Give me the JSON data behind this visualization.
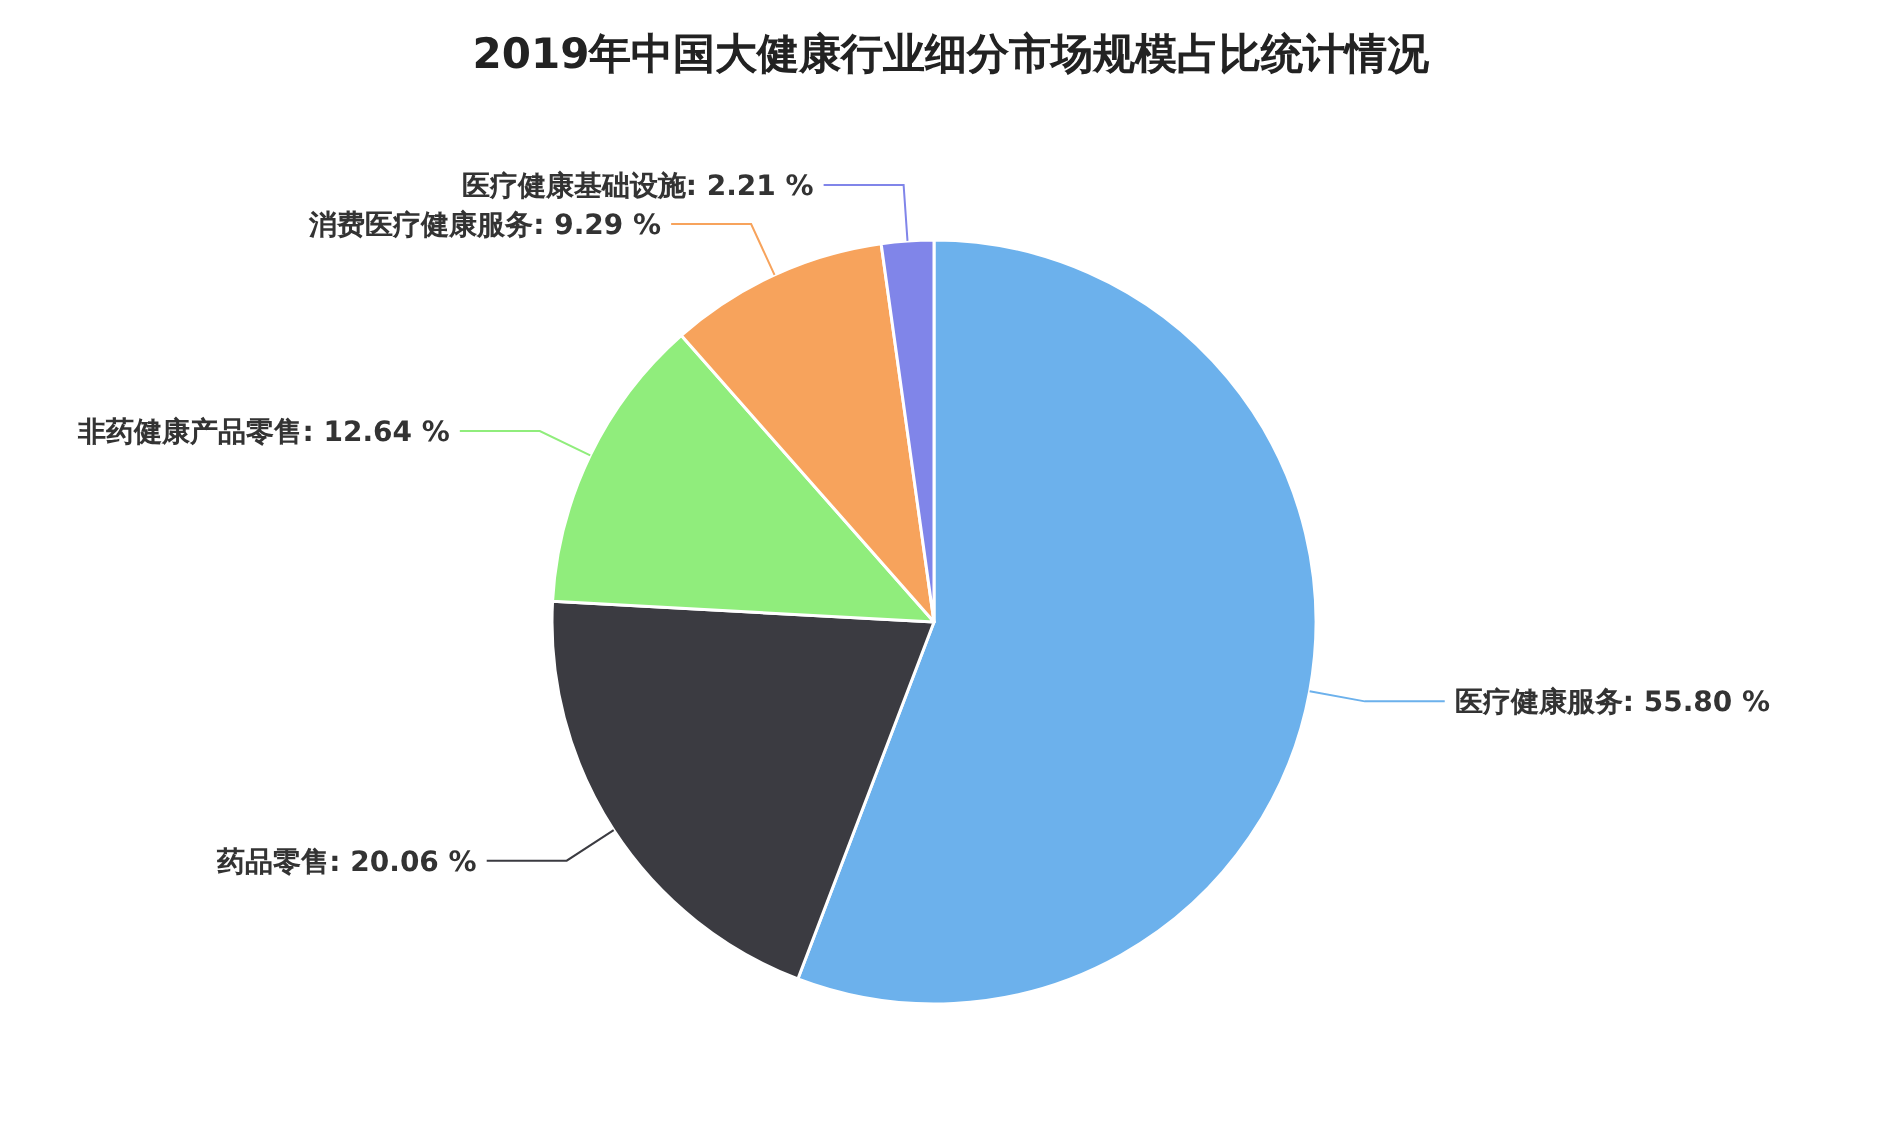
{
  "chart_data": {
    "type": "pie",
    "title": "2019年中国大健康行业细分市场规模占比统计情况",
    "categories": [
      "医疗健康服务",
      "药品零售",
      "非药健康产品零售",
      "消费医疗健康服务",
      "医疗健康基础设施"
    ],
    "values": [
      55.8,
      20.06,
      12.64,
      9.29,
      2.21
    ],
    "value_labels": [
      "55.80 %",
      "20.06 %",
      "12.64 %",
      "9.29 %",
      "2.21 %"
    ],
    "colors": [
      "#6cb1ec",
      "#3b3b41",
      "#90ed7c",
      "#f7a35c",
      "#8085e9"
    ]
  }
}
